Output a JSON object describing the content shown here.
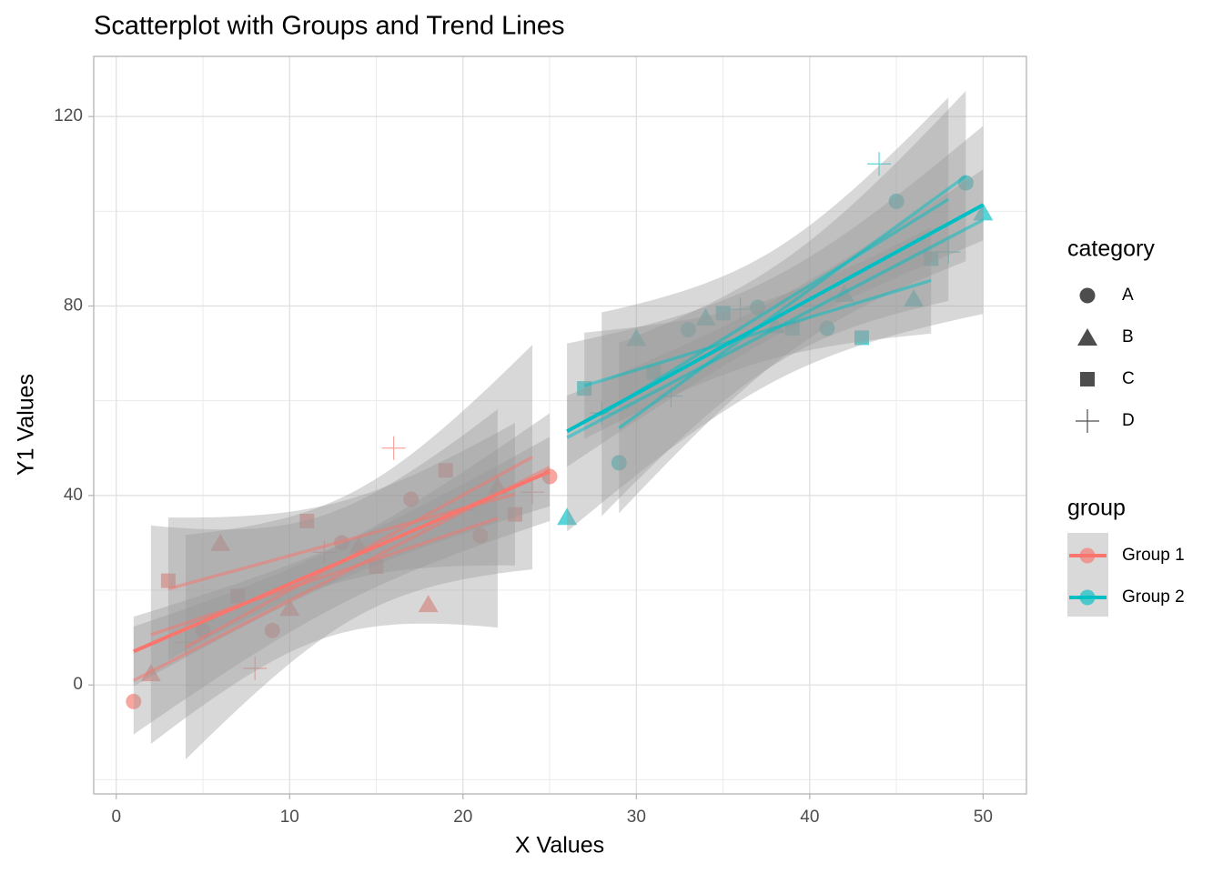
{
  "chart_data": {
    "type": "scatter",
    "title": "Scatterplot with Groups and Trend Lines",
    "x_label": "X Values",
    "y_label": "Y1 Values",
    "xlim": [
      -1.3,
      52.5
    ],
    "ylim": [
      -23,
      132.7
    ],
    "xticks": [
      0,
      10,
      20,
      30,
      40,
      50
    ],
    "yticks": [
      0,
      40,
      80,
      120
    ],
    "x_minor_grid": [
      5,
      15,
      25,
      35,
      45
    ],
    "y_minor_grid": [
      -20,
      20,
      60,
      100
    ],
    "grid": true,
    "trend_lines": true,
    "shape_legend": {
      "title": "category",
      "labels": [
        "A",
        "B",
        "C",
        "D"
      ],
      "shapes": [
        "circle",
        "triangle",
        "square",
        "plus"
      ]
    },
    "color_legend": {
      "title": "group"
    },
    "series": [
      {
        "name": "Group 1",
        "color": "#F8766D",
        "x": [
          1,
          2,
          3,
          4,
          5,
          6,
          7,
          8,
          9,
          10,
          11,
          12,
          13,
          14,
          15,
          16,
          17,
          18,
          19,
          20,
          21,
          22,
          23,
          24,
          25
        ],
        "values": [
          -3.5,
          2.5,
          22,
          9,
          11.5,
          30,
          18.8,
          3.5,
          11.5,
          16.3,
          34.6,
          28,
          30,
          29.4,
          25,
          50,
          39.2,
          17.1,
          45.3,
          37,
          31.5,
          42,
          36,
          40.7,
          44
        ],
        "category": [
          "A",
          "B",
          "C",
          "D",
          "A",
          "B",
          "C",
          "D",
          "A",
          "B",
          "C",
          "D",
          "A",
          "B",
          "C",
          "D",
          "A",
          "B",
          "C",
          "D",
          "A",
          "B",
          "C",
          "D",
          "A"
        ]
      },
      {
        "name": "Group 2",
        "color": "#00BFC4",
        "x": [
          26,
          27,
          28,
          29,
          30,
          31,
          32,
          33,
          34,
          35,
          36,
          37,
          38,
          39,
          40,
          41,
          42,
          43,
          44,
          45,
          46,
          47,
          48,
          49,
          50
        ],
        "values": [
          35.5,
          62.6,
          57.4,
          46.9,
          73.3,
          66,
          61,
          75,
          77.6,
          78.5,
          79.3,
          79.7,
          76,
          75.3,
          80,
          75.3,
          82.6,
          73.3,
          110,
          102.1,
          81.6,
          90,
          91.4,
          106,
          99.8
        ],
        "category": [
          "B",
          "C",
          "D",
          "A",
          "B",
          "C",
          "D",
          "A",
          "B",
          "C",
          "D",
          "A",
          "B",
          "C",
          "D",
          "A",
          "B",
          "C",
          "D",
          "A",
          "B",
          "C",
          "D",
          "A",
          "B"
        ]
      }
    ]
  }
}
